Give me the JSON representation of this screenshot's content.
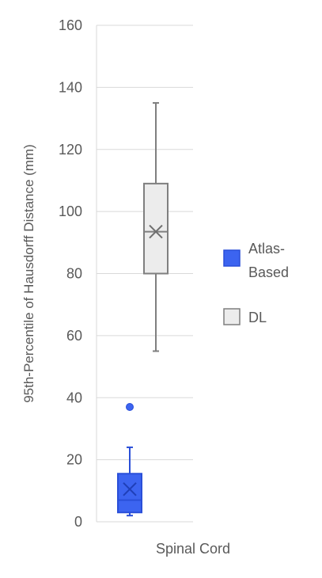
{
  "chart_data": {
    "type": "box",
    "categories": [
      "Spinal Cord"
    ],
    "ylabel": "95th-Percentile of Hausdorff Distance (mm)",
    "ylim": [
      0,
      160
    ],
    "yticks": [
      0,
      20,
      40,
      60,
      80,
      100,
      120,
      140,
      160
    ],
    "grid": true,
    "legend_position": "right",
    "series": [
      {
        "name": "Atlas-Based",
        "name_lines": [
          "Atlas-",
          "Based"
        ],
        "color": "#3c64f0",
        "stroke": "#2a4fd8",
        "whisker_min": 2,
        "q1": 3,
        "median": 7,
        "q3": 15.5,
        "whisker_max": 24,
        "mean": 10.5,
        "outliers": [
          37
        ]
      },
      {
        "name": "DL",
        "name_lines": [
          "DL"
        ],
        "color": "#ececec",
        "stroke": "#7f7f7f",
        "whisker_min": 55,
        "q1": 80,
        "median": 93.5,
        "q3": 109,
        "whisker_max": 135,
        "mean": 93.5,
        "outliers": []
      }
    ]
  }
}
